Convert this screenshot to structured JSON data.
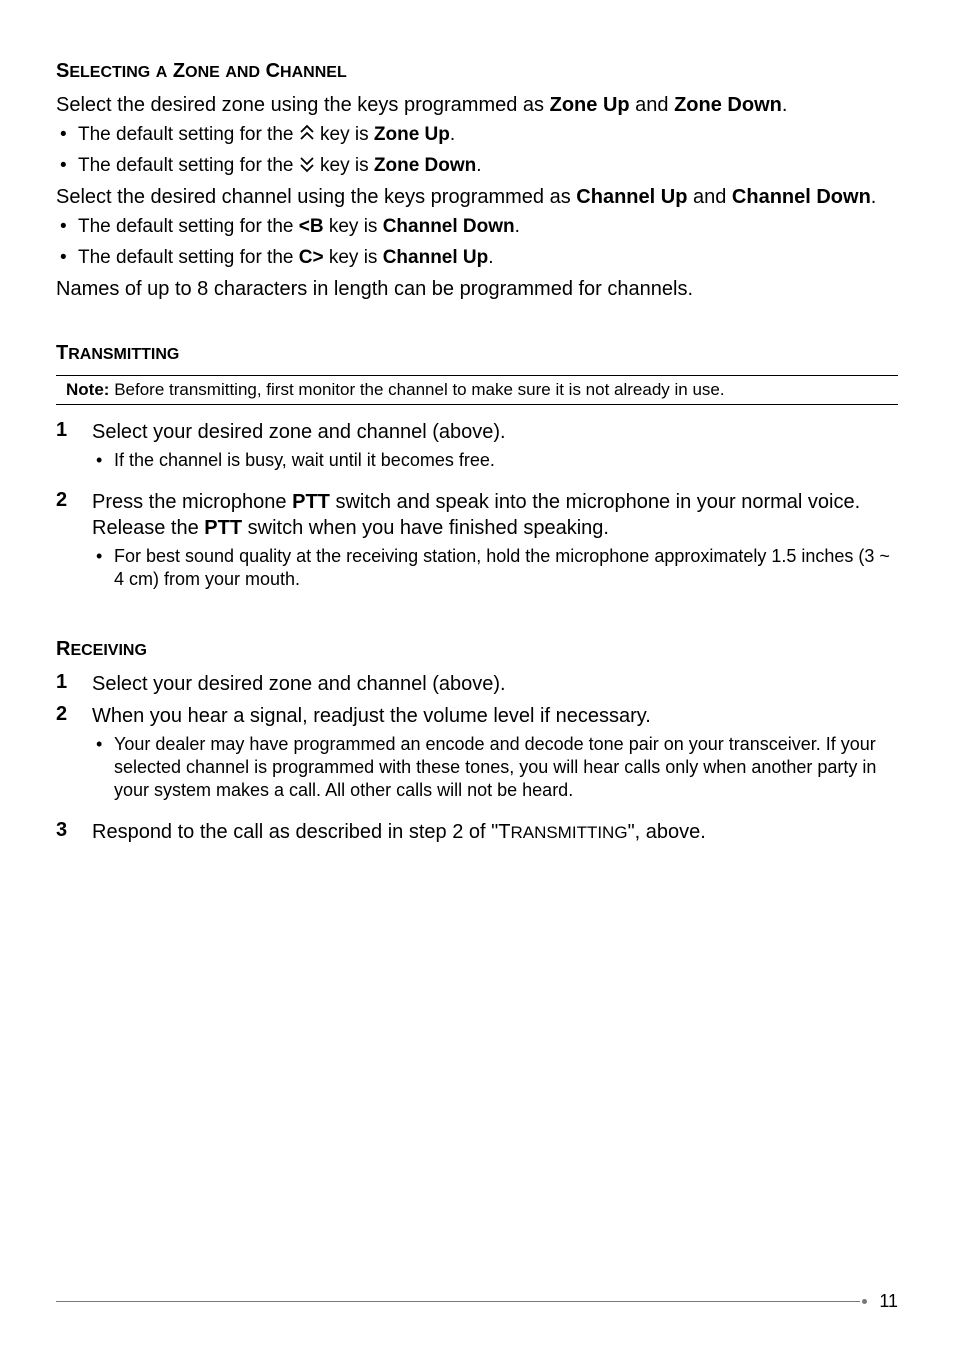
{
  "section_zone": {
    "heading_html": "S<span style=\"font-size:16px\">ELECTING</span> <span style=\"font-size:16px\">A</span> Z<span style=\"font-size:16px\">ONE</span> <span style=\"font-size:16px\">AND</span> C<span style=\"font-size:16px\">HANNEL</span>",
    "p1": "Select the desired zone using the keys programmed as <b>Zone Up</b> and <b>Zone Down</b>.",
    "b1": "The default setting for the {UP} key is <b>Zone Up</b>.",
    "b2": "The default setting for the {DOWN} key is <b>Zone Down</b>.",
    "p2": "Select the desired channel using the keys programmed as <b>Channel Up</b> and <b>Channel Down</b>.",
    "b3": "The default setting for the <b>&lt;B</b> key is <b>Channel Down</b>.",
    "b4": "The default setting for the <b>C&gt;</b> key is <b>Channel Up</b>.",
    "p3": "Names of up to 8 characters in length can be programmed for channels."
  },
  "section_trans": {
    "heading_html": "T<span style=\"font-size:16px\">RANSMITTING</span>",
    "note_label": "Note:",
    "note_text": "Before transmitting, first monitor the channel to make sure it is not already in use.",
    "steps": [
      {
        "num": "1",
        "text": "Select your desired zone and channel (above).",
        "sub": [
          "If the channel is busy, wait until it becomes free."
        ]
      },
      {
        "num": "2",
        "text": "Press the microphone <b>PTT</b> switch and speak into the microphone in your normal voice.  Release the <b>PTT</b> switch when you have finished speaking.",
        "sub": [
          "For best sound quality at the receiving station, hold the microphone approximately 1.5 inches (3 ~ 4 cm) from your mouth."
        ]
      }
    ]
  },
  "section_recv": {
    "heading_html": "R<span style=\"font-size:16px\">ECEIVING</span>",
    "steps": [
      {
        "num": "1",
        "text": "Select your desired zone and channel (above).",
        "sub": []
      },
      {
        "num": "2",
        "text": "When you hear a signal, readjust the volume level if necessary.",
        "sub": [
          "Your dealer may have programmed an encode and decode tone pair on your transceiver.  If your selected channel is programmed with these tones, you will hear calls only when another party in your system makes a call.  All other calls will not be heard."
        ]
      },
      {
        "num": "3",
        "text": "Respond to the call as described in step 2 of \"T<span class=\"smallcaps\" style=\"font-size:17px\">RANSMITTING</span>\", above.",
        "sub": []
      }
    ]
  },
  "page_number": "11",
  "icons": {
    "up_chevrons_svg": "<svg class=\"chevron-icon\" width=\"16\" height=\"18\" viewBox=\"0 0 16 18\"><path d=\"M2 8 L8 2 L14 8\" stroke=\"#000\" stroke-width=\"1.8\" fill=\"none\"/><path d=\"M2 15 L8 9 L14 15\" stroke=\"#000\" stroke-width=\"1.8\" fill=\"none\"/></svg>",
    "down_chevrons_svg": "<svg class=\"chevron-icon\" width=\"16\" height=\"18\" viewBox=\"0 0 16 18\"><path d=\"M2 3 L8 9 L14 3\" stroke=\"#000\" stroke-width=\"1.8\" fill=\"none\"/><path d=\"M2 10 L8 16 L14 10\" stroke=\"#000\" stroke-width=\"1.8\" fill=\"none\"/></svg>"
  },
  "colors": {
    "text": "#000000",
    "rule": "#777777",
    "background": "#ffffff"
  },
  "typography": {
    "heading_size": 20,
    "body_size": 20,
    "sub_size": 18,
    "note_size": 17
  }
}
